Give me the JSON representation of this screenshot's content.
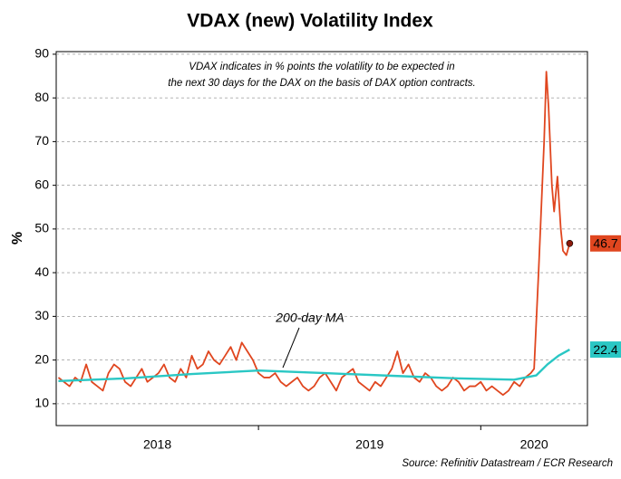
{
  "chart_data": {
    "type": "line",
    "title": "VDAX (new) Volatility Index",
    "y_label": "%",
    "note_lines": [
      "VDAX indicates in % points the volatility to be expected in",
      "the next 30 days for the DAX on the basis of  DAX option contracts."
    ],
    "source": "Source: Refinitiv Datastream / ECR Research",
    "xlim": [
      2018.09,
      2020.48
    ],
    "xticks": [
      {
        "value": 2018,
        "label": "2018"
      },
      {
        "value": 2019,
        "label": "2019"
      },
      {
        "value": 2020,
        "label": "2020"
      }
    ],
    "ylim": [
      5,
      90.6
    ],
    "yticks": [
      10,
      20,
      30,
      40,
      50,
      60,
      70,
      80,
      90
    ],
    "grid": true,
    "series": [
      {
        "color": "#e0461f",
        "end_marker": true,
        "x": [
          2018.1,
          2018.125,
          2018.15,
          2018.175,
          2018.2,
          2018.225,
          2018.25,
          2018.275,
          2018.3,
          2018.325,
          2018.35,
          2018.375,
          2018.4,
          2018.425,
          2018.45,
          2018.475,
          2018.5,
          2018.525,
          2018.55,
          2018.575,
          2018.6,
          2018.625,
          2018.65,
          2018.675,
          2018.7,
          2018.725,
          2018.75,
          2018.775,
          2018.8,
          2018.825,
          2018.85,
          2018.875,
          2018.9,
          2018.925,
          2018.95,
          2018.975,
          2019.0,
          2019.025,
          2019.05,
          2019.075,
          2019.1,
          2019.125,
          2019.15,
          2019.175,
          2019.2,
          2019.225,
          2019.25,
          2019.275,
          2019.3,
          2019.325,
          2019.35,
          2019.375,
          2019.4,
          2019.425,
          2019.45,
          2019.475,
          2019.5,
          2019.525,
          2019.55,
          2019.575,
          2019.6,
          2019.625,
          2019.65,
          2019.675,
          2019.7,
          2019.725,
          2019.75,
          2019.775,
          2019.8,
          2019.825,
          2019.85,
          2019.875,
          2019.9,
          2019.925,
          2019.95,
          2019.975,
          2020.0,
          2020.025,
          2020.05,
          2020.075,
          2020.1,
          2020.125,
          2020.15,
          2020.175,
          2020.2,
          2020.225,
          2020.24,
          2020.26,
          2020.285,
          2020.295,
          2020.305,
          2020.32,
          2020.33,
          2020.345,
          2020.36,
          2020.37,
          2020.385,
          2020.4
        ],
        "values": [
          16,
          15,
          14,
          16,
          15,
          19,
          15,
          14,
          13,
          17,
          19,
          18,
          15,
          14,
          16,
          18,
          15,
          16,
          17,
          19,
          16,
          15,
          18,
          16,
          21,
          18,
          19,
          22,
          20,
          19,
          21,
          23,
          20,
          24,
          22,
          20,
          17,
          16,
          16,
          17,
          15,
          14,
          15,
          16,
          14,
          13,
          14,
          16,
          17,
          15,
          13,
          16,
          17,
          18,
          15,
          14,
          13,
          15,
          14,
          16,
          18,
          22,
          17,
          19,
          16,
          15,
          17,
          16,
          14,
          13,
          14,
          16,
          15,
          13,
          14,
          14,
          15,
          13,
          14,
          13,
          12,
          13,
          15,
          14,
          16,
          17,
          18,
          40,
          70,
          86,
          78,
          60,
          54,
          62,
          50,
          45,
          44,
          46.7
        ]
      },
      {
        "name": "200-day MA",
        "color": "#2ac7c4",
        "x": [
          2018.1,
          2018.4,
          2018.7,
          2019.0,
          2019.3,
          2019.6,
          2019.9,
          2020.15,
          2020.25,
          2020.3,
          2020.35,
          2020.4
        ],
        "values": [
          15.2,
          15.8,
          16.8,
          17.6,
          17.0,
          16.4,
          15.8,
          15.5,
          16.5,
          19,
          21,
          22.4
        ]
      }
    ]
  }
}
